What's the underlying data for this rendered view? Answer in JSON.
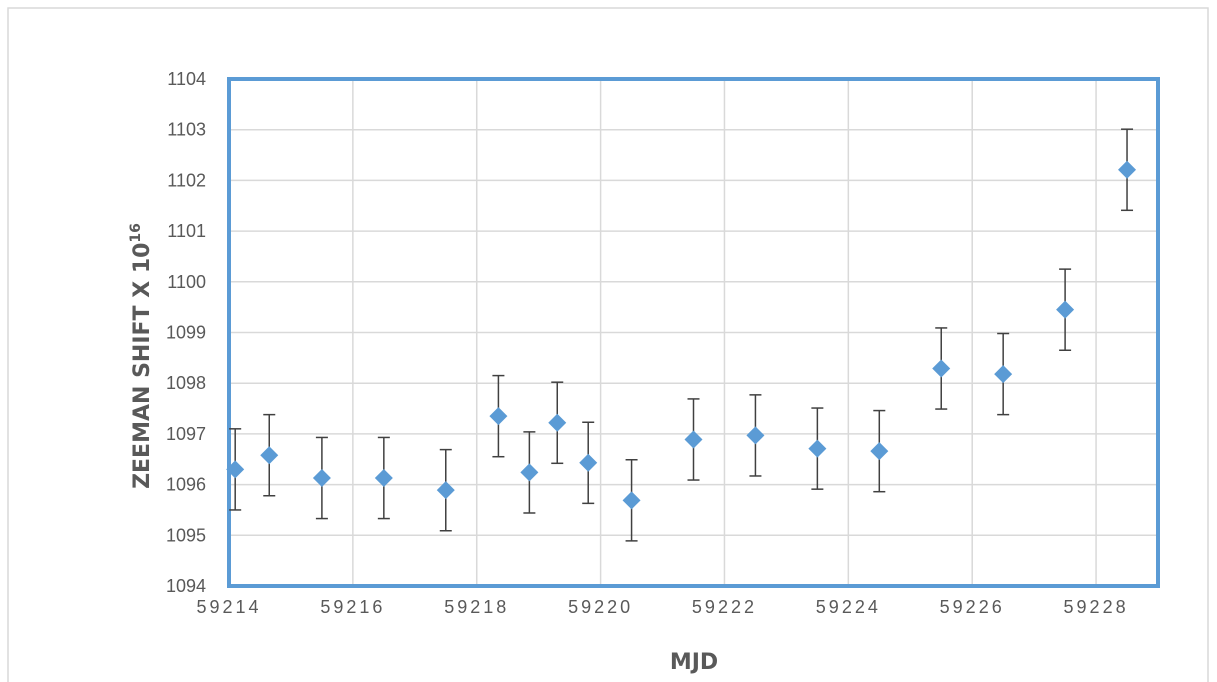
{
  "chart_data": {
    "type": "scatter",
    "xlabel": "MJD",
    "ylabel": "ZEEMAN SHIFT X 10",
    "ylabel_sup": "16",
    "xlim": [
      59214,
      59229
    ],
    "ylim": [
      1094,
      1104
    ],
    "x_ticks": [
      59214,
      59216,
      59218,
      59220,
      59222,
      59224,
      59226,
      59228
    ],
    "y_ticks": [
      1094,
      1095,
      1096,
      1097,
      1098,
      1099,
      1100,
      1101,
      1102,
      1103,
      1104
    ],
    "grid": true,
    "marker": "diamond",
    "series_color": "#5B9BD5",
    "error_bar_color": "#404040",
    "plot_border_color": "#5B9BD5",
    "series": [
      {
        "x": [
          59214.1,
          59214.65,
          59215.5,
          59216.5,
          59217.5,
          59218.35,
          59218.85,
          59219.3,
          59219.8,
          59220.5,
          59221.5,
          59222.5,
          59223.5,
          59224.5,
          59225.5,
          59226.5,
          59227.5,
          59228.5
        ],
        "y": [
          1096.3,
          1096.58,
          1096.13,
          1096.13,
          1095.89,
          1097.35,
          1096.24,
          1097.22,
          1096.43,
          1095.69,
          1096.89,
          1096.97,
          1096.71,
          1096.66,
          1098.29,
          1098.18,
          1099.45,
          1102.21
        ],
        "error": [
          0.8,
          0.8,
          0.8,
          0.8,
          0.8,
          0.8,
          0.8,
          0.8,
          0.8,
          0.8,
          0.8,
          0.8,
          0.8,
          0.8,
          0.8,
          0.8,
          0.8,
          0.8
        ]
      }
    ]
  }
}
